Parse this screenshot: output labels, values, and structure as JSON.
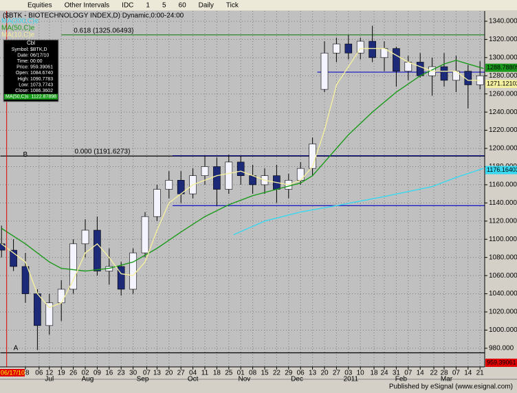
{
  "toolbar": {
    "items": [
      "Equities",
      "Other Intervals",
      "IDC",
      "1",
      "5",
      "60",
      "Daily",
      "Tick"
    ]
  },
  "chart_data": {
    "type": "candlestick",
    "title": "($BTK - BIOTECHNOLOGY INDEX,D) Dynamic,0:00-24:00",
    "x": [
      -2,
      -1,
      0,
      1,
      2,
      3,
      4,
      5,
      6,
      7,
      8,
      9,
      10,
      11,
      12,
      13,
      14,
      15,
      16,
      17,
      18,
      19,
      20,
      21,
      22,
      23,
      24,
      25,
      26,
      27,
      28,
      29,
      30,
      31,
      32,
      33,
      34,
      35,
      36,
      37,
      38
    ],
    "open": [
      1095,
      1088,
      1070,
      1040,
      1005,
      1030,
      1045,
      1095,
      1110,
      1065,
      1070,
      1045,
      1085,
      1125,
      1155,
      1165,
      1150,
      1170,
      1180,
      1155,
      1185,
      1170,
      1160,
      1170,
      1155,
      1165,
      1178,
      1265,
      1305,
      1315,
      1305,
      1318,
      1300,
      1310,
      1285,
      1295,
      1280,
      1290,
      1275,
      1285,
      1270
    ],
    "high": [
      1115,
      1100,
      1085,
      1045,
      1040,
      1055,
      1100,
      1122,
      1125,
      1090,
      1075,
      1090,
      1130,
      1160,
      1175,
      1175,
      1178,
      1192,
      1190,
      1193,
      1192,
      1182,
      1178,
      1182,
      1172,
      1185,
      1212,
      1318,
      1322,
      1325,
      1322,
      1335,
      1318,
      1312,
      1302,
      1305,
      1300,
      1305,
      1302,
      1292,
      1296
    ],
    "low": [
      1080,
      1065,
      1030,
      978,
      995,
      1010,
      1040,
      1080,
      1060,
      1050,
      1038,
      1040,
      1080,
      1120,
      1145,
      1140,
      1145,
      1160,
      1137,
      1150,
      1160,
      1150,
      1150,
      1140,
      1145,
      1160,
      1170,
      1262,
      1295,
      1298,
      1298,
      1295,
      1285,
      1268,
      1275,
      1278,
      1258,
      1268,
      1262,
      1244,
      1265
    ],
    "close": [
      1088,
      1070,
      1040,
      1005,
      1030,
      1045,
      1095,
      1110,
      1065,
      1070,
      1045,
      1085,
      1125,
      1155,
      1165,
      1150,
      1170,
      1180,
      1155,
      1185,
      1170,
      1160,
      1170,
      1155,
      1165,
      1178,
      1205,
      1305,
      1315,
      1305,
      1318,
      1300,
      1310,
      1285,
      1295,
      1280,
      1290,
      1275,
      1285,
      1270,
      1280
    ],
    "up_color": "#f4f4ff",
    "down_color": "#1c2a78",
    "wick_color": "#000000",
    "lines": [
      {
        "name": "MA(200,C)e",
        "color": "#38d8f0",
        "x": [
          17.4,
          20,
          23,
          26,
          30,
          34,
          36,
          38.3
        ],
        "values": [
          1105,
          1120,
          1130,
          1137,
          1147,
          1158,
          1168,
          1178
        ]
      },
      {
        "name": "MA(50,C)e",
        "color": "#1a9a1a",
        "x": [
          -2,
          0,
          2,
          3,
          5,
          7,
          9,
          11,
          13,
          15,
          17,
          19,
          21,
          23,
          24,
          25,
          26,
          27,
          29,
          31,
          33,
          35,
          36,
          37,
          38.3
        ],
        "values": [
          1112,
          1095,
          1075,
          1068,
          1065,
          1068,
          1075,
          1090,
          1108,
          1125,
          1138,
          1148,
          1155,
          1162,
          1170,
          1185,
          1200,
          1215,
          1240,
          1262,
          1280,
          1293,
          1297,
          1293,
          1288
        ]
      },
      {
        "name": "MA(10,C)e",
        "color": "#f4f0a0",
        "x": [
          -2,
          0,
          1,
          2,
          3,
          4,
          5,
          6,
          7,
          8,
          9,
          10,
          11,
          12,
          14,
          16,
          18,
          20,
          22,
          23,
          24,
          25,
          26,
          28,
          30,
          32,
          34,
          36,
          37,
          38
        ],
        "values": [
          1095,
          1075,
          1040,
          1025,
          1030,
          1055,
          1085,
          1095,
          1080,
          1062,
          1060,
          1075,
          1110,
          1140,
          1160,
          1170,
          1175,
          1165,
          1160,
          1165,
          1180,
          1220,
          1270,
          1310,
          1310,
          1295,
          1285,
          1285,
          1275,
          1275
        ]
      }
    ],
    "levels": [
      {
        "value": 1325.06493,
        "x_start": 3.0,
        "color": "#3a8a3a",
        "label": "0.618 (1325.06493)"
      },
      {
        "value": 1191.6273,
        "x_start": -2.1,
        "color": "#000000",
        "label": "0.000 (1191.6273)"
      },
      {
        "value": 1192,
        "x_start": 12.3,
        "color": "#0a0a80"
      },
      {
        "value": 1137,
        "x_start": 12.3,
        "color": "#2020c0"
      },
      {
        "value": 1284,
        "x_start": 24.4,
        "color": "#2020c0"
      },
      {
        "value": 975,
        "x_start": -2.1,
        "color": "#000000"
      }
    ],
    "annotations": [
      {
        "text": "A",
        "x": -1.0,
        "y": 980
      },
      {
        "text": "B",
        "x": -0.2,
        "y": 1193
      }
    ],
    "xlim": [
      -2.1,
      38.4
    ],
    "ylim": [
      959.5,
      1351.3
    ],
    "yticks": [
      {
        "value": 980,
        "label": "980.000"
      },
      {
        "value": 1000,
        "label": "1000.000"
      },
      {
        "value": 1020,
        "label": "1020.000"
      },
      {
        "value": 1040,
        "label": "1040.000"
      },
      {
        "value": 1060,
        "label": "1060.000"
      },
      {
        "value": 1080,
        "label": "1080.000"
      },
      {
        "value": 1100,
        "label": "1100.000"
      },
      {
        "value": 1120,
        "label": "1120.000"
      },
      {
        "value": 1140,
        "label": "1140.000"
      },
      {
        "value": 1160,
        "label": "1160.000"
      },
      {
        "value": 1180,
        "label": "1180.000"
      },
      {
        "value": 1200,
        "label": "1200.000"
      },
      {
        "value": 1220,
        "label": "1220.000"
      },
      {
        "value": 1240,
        "label": "1240.000"
      },
      {
        "value": 1260,
        "label": "1260.000"
      },
      {
        "value": 1280,
        "label": "1280.000"
      },
      {
        "value": 1300,
        "label": "1300.000"
      },
      {
        "value": 1320,
        "label": "1320.000"
      },
      {
        "value": 1340,
        "label": "1340.000"
      }
    ],
    "xticks": [
      {
        "value": 0,
        "label": "28"
      },
      {
        "value": 1.14,
        "label": "06"
      },
      {
        "value": 2,
        "label": "12"
      },
      {
        "value": 3,
        "label": "19"
      },
      {
        "value": 4,
        "label": "26"
      },
      {
        "value": 5,
        "label": "02"
      },
      {
        "value": 6,
        "label": "09"
      },
      {
        "value": 7,
        "label": "16"
      },
      {
        "value": 8,
        "label": "23"
      },
      {
        "value": 9,
        "label": "30"
      },
      {
        "value": 10.14,
        "label": "07"
      },
      {
        "value": 11,
        "label": "13"
      },
      {
        "value": 12,
        "label": "20"
      },
      {
        "value": 13,
        "label": "27"
      },
      {
        "value": 14,
        "label": "04"
      },
      {
        "value": 15,
        "label": "11"
      },
      {
        "value": 16,
        "label": "18"
      },
      {
        "value": 17,
        "label": "25"
      },
      {
        "value": 18,
        "label": "01"
      },
      {
        "value": 19,
        "label": "08"
      },
      {
        "value": 20,
        "label": "15"
      },
      {
        "value": 21,
        "label": "22"
      },
      {
        "value": 22,
        "label": "29"
      },
      {
        "value": 23,
        "label": "06"
      },
      {
        "value": 24,
        "label": "13"
      },
      {
        "value": 25,
        "label": "20"
      },
      {
        "value": 26,
        "label": "27"
      },
      {
        "value": 27,
        "label": "03"
      },
      {
        "value": 28,
        "label": "10"
      },
      {
        "value": 29.14,
        "label": "18"
      },
      {
        "value": 30,
        "label": "24"
      },
      {
        "value": 31,
        "label": "31"
      },
      {
        "value": 32,
        "label": "07"
      },
      {
        "value": 33,
        "label": "14"
      },
      {
        "value": 34.14,
        "label": "22"
      },
      {
        "value": 35,
        "label": "28"
      },
      {
        "value": 36,
        "label": "07"
      },
      {
        "value": 37,
        "label": "14"
      },
      {
        "value": 38,
        "label": "21"
      }
    ],
    "month_labels": [
      {
        "value": 2.0,
        "label": "Jul"
      },
      {
        "value": 5.2,
        "label": "Aug"
      },
      {
        "value": 9.8,
        "label": "Sep"
      },
      {
        "value": 14.0,
        "label": "Oct"
      },
      {
        "value": 18.3,
        "label": "Nov"
      },
      {
        "value": 22.7,
        "label": "Dec"
      },
      {
        "value": 27.2,
        "label": "2011"
      },
      {
        "value": 31.4,
        "label": "Feb"
      },
      {
        "value": 35.2,
        "label": "Mar"
      }
    ],
    "cursor": {
      "x": -1.57,
      "label": "06/17/10",
      "color": "#e00000"
    },
    "price_tags": [
      {
        "value": 1288.78809,
        "color": "#1a9a1a"
      },
      {
        "value": 1271.12102,
        "color": "#f4f0a0"
      },
      {
        "value": 1176.16403,
        "color": "#38d8f0"
      },
      {
        "value": 959.39061,
        "color": "#e00000"
      }
    ],
    "grid": true
  },
  "data_window": {
    "header": "Cbl",
    "rows": [
      [
        "Symbol:",
        "$BTK,D"
      ],
      [
        "Date:",
        "06/17/10"
      ],
      [
        "Time:",
        "00:00"
      ],
      [
        "Price:",
        "959.39061"
      ],
      [
        "Open:",
        "1084.6740"
      ],
      [
        "High:",
        "1090.7783"
      ],
      [
        "Low:",
        "1073.7743"
      ],
      [
        "Close:",
        "1086.3602"
      ],
      [
        "MA(50,C)s",
        "1122.87898"
      ]
    ]
  },
  "footer": "Published by eSignal (www.esignal.com)"
}
